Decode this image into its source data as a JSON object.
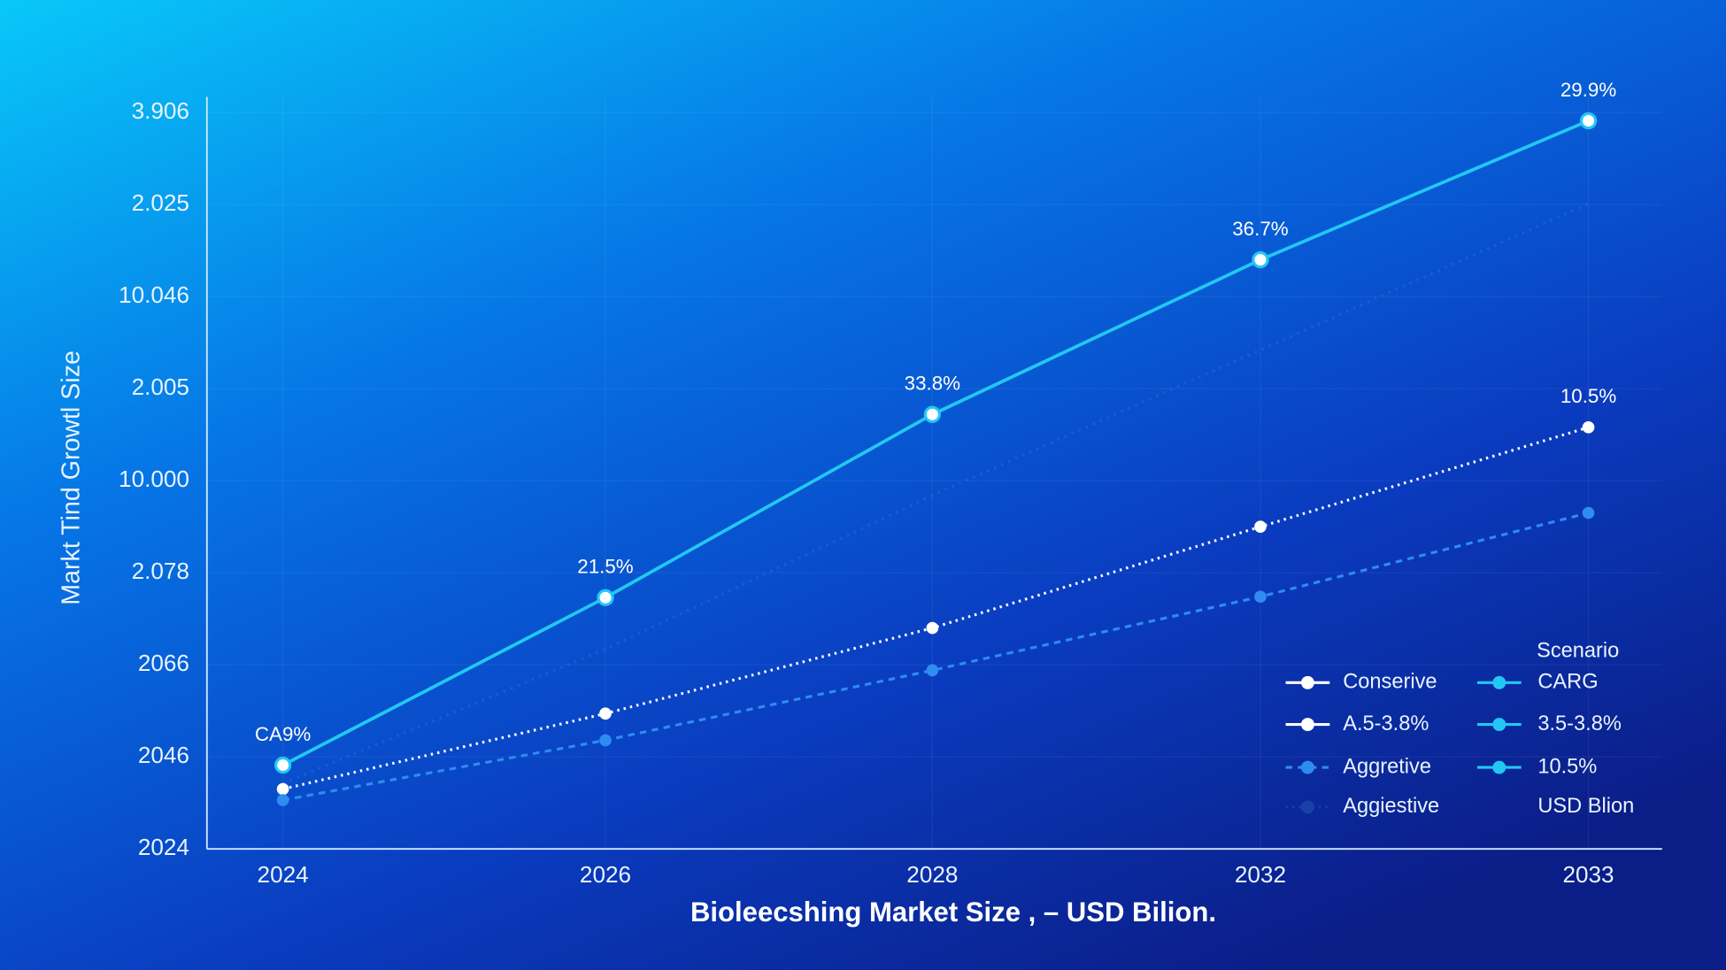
{
  "chart_data": {
    "type": "line",
    "y_label": "Markt Tind Growtl Size",
    "x_label": "Bioleecshing Market Size ,  – USD Bilion.",
    "categories": [
      "2024",
      "2026",
      "2028",
      "2032",
      "2033"
    ],
    "ylim": [
      0,
      8.2
    ],
    "yticks": [
      {
        "value": 0,
        "label": "2024"
      },
      {
        "value": 1,
        "label": "2046"
      },
      {
        "value": 2,
        "label": "2066"
      },
      {
        "value": 3,
        "label": "2.078"
      },
      {
        "value": 4,
        "label": "10.000"
      },
      {
        "value": 5,
        "label": "2.005"
      },
      {
        "value": 6,
        "label": "10.046"
      },
      {
        "value": 7,
        "label": "2.025"
      },
      {
        "value": 8,
        "label": "3.906"
      }
    ],
    "grid": true,
    "series": [
      {
        "color": "#22c8f4",
        "style": "solid",
        "marker": true,
        "values": [
          0.91,
          2.73,
          4.72,
          6.4,
          7.91
        ],
        "annotations": [
          "CA9%",
          "21.5%",
          "33.8%",
          "36.7%",
          "29.9%"
        ]
      },
      {
        "color": "#2a6fd8",
        "style": "faint",
        "marker": false,
        "values": [
          0.71,
          2.17,
          3.84,
          5.42,
          7.01
        ]
      },
      {
        "color": "#ffffff",
        "style": "dotted",
        "marker": true,
        "values": [
          0.65,
          1.47,
          2.4,
          3.5,
          4.58
        ],
        "annotations": [
          null,
          null,
          null,
          null,
          "10.5%"
        ]
      },
      {
        "color": "#2f8cf0",
        "style": "dashed",
        "marker": true,
        "values": [
          0.53,
          1.18,
          1.94,
          2.74,
          3.65
        ]
      }
    ],
    "legend": {
      "title": "Scenario",
      "position": "lower right",
      "items": [
        {
          "label": "Conserive",
          "color": "#ffffff",
          "style": "solid",
          "marker": true
        },
        {
          "label": "A.5-3.8%",
          "color": "#ffffff",
          "style": "solid",
          "marker": true
        },
        {
          "label": "Aggretive",
          "color": "#2f8cf0",
          "style": "dashed",
          "marker": true
        },
        {
          "label": "Aggiestive",
          "color": "#1a3fa8",
          "style": "dotted",
          "marker": true
        },
        {
          "label": "CARG",
          "color": "#22c8f4",
          "style": "solid",
          "marker": true
        },
        {
          "label": "3.5-3.8%",
          "color": "#22c8f4",
          "style": "solid",
          "marker": true
        },
        {
          "label": "10.5%",
          "color": "#22c8f4",
          "style": "solid",
          "marker": true
        },
        {
          "label": "USD Blion",
          "color": "#22c8f4",
          "style": "none",
          "marker": false
        }
      ]
    }
  }
}
